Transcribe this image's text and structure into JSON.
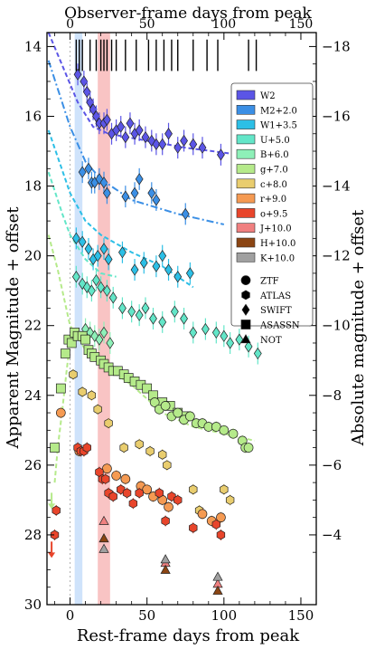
{
  "chart_data": {
    "type": "scatter",
    "xlabel": "Rest-frame days from peak",
    "x2label": "Observer-frame days from peak",
    "ylabel": "Apparent Magnitude + offset",
    "y2label": "Absolute magnitude + offset",
    "xlim": [
      -15,
      160
    ],
    "ylim": [
      30,
      13.6
    ],
    "x_ticks": [
      0,
      50,
      100,
      150
    ],
    "x2_ticks": [
      0,
      50,
      100,
      150
    ],
    "y_ticks": [
      14,
      16,
      18,
      20,
      22,
      24,
      26,
      28,
      30
    ],
    "y2_ticks": [
      -18,
      -16,
      -14,
      -12,
      -10,
      -8,
      -6,
      -4
    ],
    "spectra_epochs": [
      4,
      6,
      8,
      13,
      17,
      20,
      22,
      24,
      27,
      30,
      36,
      43,
      51,
      56,
      61,
      66,
      70,
      80,
      89,
      96,
      116,
      121
    ],
    "shaded_bands": [
      {
        "from": 3,
        "to": 8,
        "color": "#cfe3fb"
      },
      {
        "from": 18,
        "to": 26,
        "color": "#f9c4c4"
      }
    ],
    "legend": {
      "bands": [
        {
          "name": "W2",
          "color": "#5b55e6"
        },
        {
          "name": "M2+2.0",
          "color": "#3b8fe5"
        },
        {
          "name": "W1+3.5",
          "color": "#2cbfe6"
        },
        {
          "name": "U+5.0",
          "color": "#63e6c8"
        },
        {
          "name": "B+6.0",
          "color": "#8ef0b8"
        },
        {
          "name": "g+7.0",
          "color": "#b5ea8a"
        },
        {
          "name": "c+8.0",
          "color": "#e9cd6e"
        },
        {
          "name": "r+9.0",
          "color": "#f59a52"
        },
        {
          "name": "o+9.5",
          "color": "#e8452b"
        },
        {
          "name": "J+10.0",
          "color": "#f08080"
        },
        {
          "name": "H+10.0",
          "color": "#8b4513"
        },
        {
          "name": "K+10.0",
          "color": "#a0a0a0"
        }
      ],
      "surveys": [
        {
          "name": "ZTF",
          "marker": "circle"
        },
        {
          "name": "ATLAS",
          "marker": "hexagon"
        },
        {
          "name": "SWIFT",
          "marker": "diamond"
        },
        {
          "name": "ASASSN",
          "marker": "square"
        },
        {
          "name": "NOT",
          "marker": "triangle"
        }
      ]
    },
    "fits": [
      {
        "band": "W2",
        "color": "#5b55e6",
        "points": [
          [
            -14,
            13.6
          ],
          [
            5,
            15.6
          ],
          [
            15,
            16.3
          ],
          [
            25,
            16.5
          ],
          [
            50,
            16.7
          ],
          [
            75,
            16.9
          ],
          [
            110,
            17.1
          ]
        ]
      },
      {
        "band": "M2+2.0",
        "color": "#3b8fe5",
        "points": [
          [
            -14,
            14.4
          ],
          [
            0,
            16.3
          ],
          [
            10,
            17.3
          ],
          [
            20,
            17.8
          ],
          [
            40,
            18.4
          ],
          [
            70,
            18.8
          ],
          [
            100,
            19.1
          ]
        ]
      },
      {
        "band": "W1+3.5",
        "color": "#2cbfe6",
        "points": [
          [
            -14,
            16.4
          ],
          [
            0,
            18.2
          ],
          [
            10,
            19.0
          ],
          [
            20,
            19.4
          ],
          [
            40,
            19.9
          ],
          [
            60,
            20.3
          ],
          [
            80,
            20.9
          ]
        ]
      },
      {
        "band": "U+5.0",
        "color": "#63e6c8",
        "points": [
          [
            -14,
            17.6
          ],
          [
            -5,
            18.8
          ],
          [
            0,
            19.4
          ],
          [
            10,
            20.1
          ],
          [
            20,
            20.5
          ],
          [
            30,
            20.6
          ]
        ]
      },
      {
        "band": "g+7.0",
        "color": "#b5ea8a",
        "points": [
          [
            -14,
            19.4
          ],
          [
            -8,
            20.4
          ],
          [
            -4,
            21.2
          ],
          [
            0,
            22.0
          ],
          [
            6,
            22.4
          ],
          [
            10,
            22.7
          ],
          [
            20,
            23.1
          ],
          [
            40,
            23.7
          ],
          [
            60,
            24.5
          ],
          [
            80,
            24.9
          ],
          [
            120,
            25.3
          ]
        ]
      },
      {
        "band": "g+7.0 pre-peak",
        "color": "#b5ea8a",
        "points": [
          [
            -10,
            26.5
          ],
          [
            -8,
            25.5
          ],
          [
            -5,
            24.4
          ],
          [
            -2,
            23.2
          ],
          [
            0,
            22.5
          ]
        ]
      }
    ],
    "series": [
      {
        "name": "W2",
        "marker": "diamond",
        "color": "#5b55e6",
        "x": [
          5,
          9,
          11,
          13,
          15,
          17,
          19,
          22,
          24,
          27,
          30,
          33,
          36,
          39,
          42,
          45,
          49,
          53,
          56,
          60,
          64,
          70,
          74,
          80,
          86,
          98
        ],
        "y": [
          14.8,
          15.0,
          15.3,
          15.6,
          15.8,
          16.0,
          16.2,
          16.2,
          16.1,
          16.5,
          16.4,
          16.3,
          16.6,
          16.2,
          16.5,
          16.4,
          16.6,
          16.7,
          16.8,
          16.8,
          16.5,
          16.9,
          16.7,
          16.8,
          16.9,
          17.1
        ]
      },
      {
        "name": "M2+2.0",
        "marker": "diamond",
        "color": "#3b8fe5",
        "x": [
          8,
          12,
          14,
          16,
          19,
          22,
          24,
          36,
          42,
          45,
          53,
          56,
          75
        ],
        "y": [
          17.6,
          17.5,
          17.9,
          17.9,
          17.8,
          17.9,
          18.2,
          18.3,
          18.2,
          17.8,
          18.2,
          18.4,
          18.8
        ]
      },
      {
        "name": "W1+3.5",
        "marker": "diamond",
        "color": "#2cbfe6",
        "x": [
          4,
          8,
          12,
          15,
          18,
          22,
          25,
          34,
          42,
          48,
          56,
          60,
          64,
          70,
          78
        ],
        "y": [
          19.5,
          19.6,
          19.8,
          20.1,
          20.0,
          19.8,
          20.1,
          19.9,
          20.4,
          20.2,
          20.3,
          20.0,
          20.4,
          20.6,
          20.5
        ]
      },
      {
        "name": "U+5.0",
        "marker": "diamond",
        "color": "#63e6c8",
        "x": [
          4,
          8,
          11,
          14,
          17,
          20,
          24,
          28,
          34,
          40,
          45,
          49,
          54,
          60,
          68,
          74,
          80,
          88,
          95,
          100,
          104,
          110,
          116,
          122
        ],
        "y": [
          20.6,
          20.8,
          20.9,
          21.0,
          20.7,
          20.9,
          21.0,
          21.2,
          21.5,
          21.6,
          21.7,
          21.5,
          21.8,
          21.9,
          21.6,
          21.8,
          22.2,
          22.1,
          22.2,
          22.3,
          22.5,
          22.4,
          22.6,
          22.8
        ]
      },
      {
        "name": "B+6.0",
        "marker": "diamond",
        "color": "#8ef0b8",
        "x": [
          10,
          13,
          16,
          19,
          22,
          26
        ],
        "y": [
          22.1,
          22.2,
          22.3,
          22.4,
          22.2,
          22.5
        ]
      },
      {
        "name": "g+7.0 ASASSN",
        "marker": "square",
        "color": "#b5ea8a",
        "x": [
          -10,
          -6,
          -3,
          -1,
          1,
          3,
          5,
          8,
          10,
          12,
          14,
          16,
          20,
          22,
          25,
          28,
          31,
          35,
          38,
          42,
          46,
          50,
          54,
          60,
          65,
          70,
          75
        ],
        "y": [
          25.5,
          23.8,
          22.8,
          22.4,
          22.5,
          22.2,
          22.3,
          22.3,
          22.4,
          22.7,
          22.8,
          22.9,
          23.0,
          23.1,
          23.2,
          23.3,
          23.3,
          23.4,
          23.5,
          23.6,
          23.7,
          23.8,
          24.0,
          24.2,
          24.3,
          24.5,
          24.6
        ]
      },
      {
        "name": "g+7.0 ZTF",
        "marker": "circle",
        "color": "#b5ea8a",
        "x": [
          55,
          58,
          62,
          66,
          70,
          74,
          78,
          82,
          86,
          90,
          95,
          100,
          106,
          112,
          114,
          116
        ],
        "y": [
          24.2,
          24.4,
          24.3,
          24.6,
          24.5,
          24.7,
          24.6,
          24.8,
          24.8,
          24.9,
          24.9,
          25.0,
          25.1,
          25.3,
          25.5,
          25.5
        ]
      },
      {
        "name": "c+8.0",
        "marker": "hexagon",
        "color": "#e9cd6e",
        "x": [
          2,
          8,
          14,
          18,
          25,
          35,
          45,
          52,
          60,
          63,
          80,
          84,
          100,
          104
        ],
        "y": [
          23.4,
          23.9,
          24.0,
          24.4,
          24.8,
          25.5,
          25.4,
          25.6,
          25.7,
          26.0,
          26.7,
          27.3,
          26.7,
          27.0
        ]
      },
      {
        "name": "r+9.0",
        "marker": "circle",
        "color": "#f59a52",
        "x": [
          -6,
          6,
          24,
          30,
          36,
          46,
          50,
          54,
          60,
          64,
          86,
          92,
          98
        ],
        "y": [
          24.5,
          25.6,
          26.1,
          26.3,
          26.4,
          26.6,
          26.7,
          26.9,
          27.0,
          27.2,
          27.4,
          27.6,
          27.5
        ]
      },
      {
        "name": "o+9.5",
        "marker": "hexagon",
        "color": "#e8452b",
        "x": [
          -10,
          -9,
          5,
          7,
          9,
          11,
          19,
          21,
          23,
          25,
          28,
          33,
          37,
          41,
          45,
          58,
          62,
          66,
          70,
          80,
          95,
          98
        ],
        "y": [
          28.0,
          27.3,
          25.5,
          25.6,
          25.6,
          25.5,
          26.2,
          26.4,
          26.4,
          26.8,
          26.9,
          26.7,
          26.8,
          27.1,
          26.8,
          26.8,
          27.6,
          26.9,
          27.0,
          27.8,
          27.7,
          28.0
        ]
      },
      {
        "name": "J+10.0",
        "marker": "triangle",
        "color": "#f08080",
        "x": [
          22,
          62,
          96
        ],
        "y": [
          27.6,
          28.8,
          29.4
        ]
      },
      {
        "name": "H+10.0",
        "marker": "triangle",
        "color": "#8b4513",
        "x": [
          22,
          62,
          96
        ],
        "y": [
          28.1,
          29.0,
          29.6
        ]
      },
      {
        "name": "K+10.0",
        "marker": "triangle",
        "color": "#a0a0a0",
        "x": [
          22,
          62,
          96
        ],
        "y": [
          28.4,
          28.7,
          29.2
        ]
      }
    ],
    "upper_limits": [
      {
        "band": "o+9.5",
        "color": "#e8452b",
        "x": -12,
        "y": 28.4
      },
      {
        "band": "g+7.0",
        "color": "#b5ea8a",
        "x": -12,
        "y": 27.0
      }
    ]
  }
}
